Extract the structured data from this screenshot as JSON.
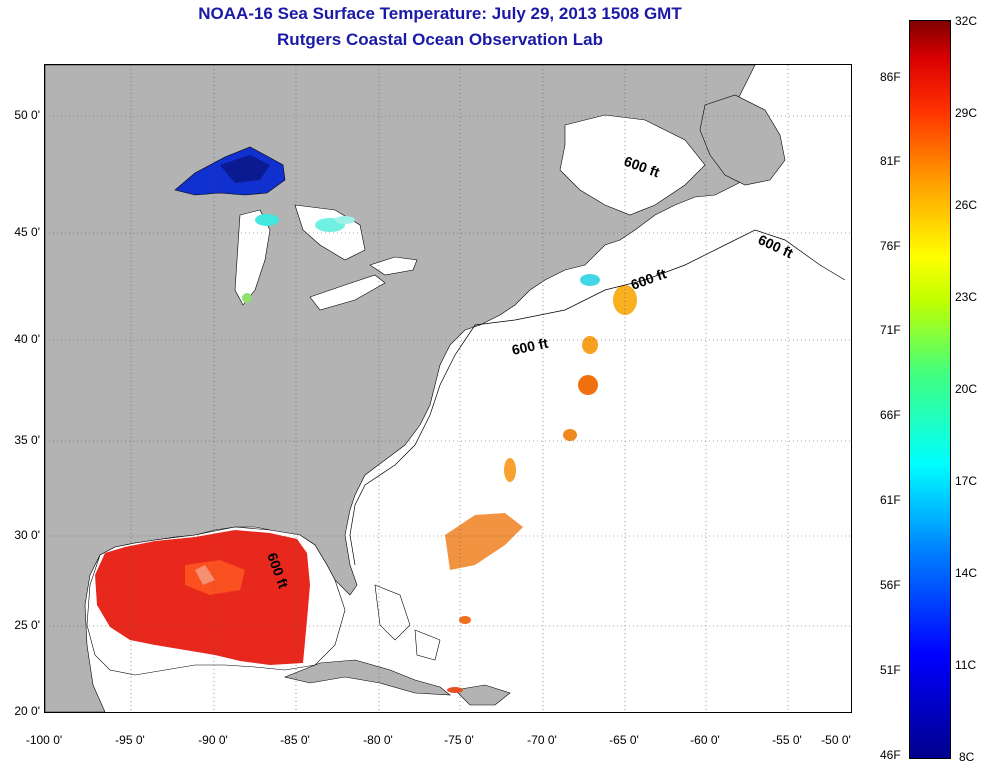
{
  "title_line1": "NOAA-16 Sea Surface Temperature:  July 29, 2013 1508 GMT",
  "title_line2": "Rutgers Coastal Ocean Observation Lab",
  "y_axis_labels": [
    "50 0'",
    "45 0'",
    "40 0'",
    "35 0'",
    "30 0'",
    "25 0'",
    "20 0'"
  ],
  "x_axis_labels": [
    "-100 0'",
    "-95 0'",
    "-90 0'",
    "-85 0'",
    "-80 0'",
    "-75 0'",
    "-70 0'",
    "-65 0'",
    "-60 0'",
    "-55 0'",
    "-50 0'"
  ],
  "colorbar_celsius": [
    "32C",
    "29C",
    "26C",
    "23C",
    "20C",
    "17C",
    "14C",
    "11C",
    "8C"
  ],
  "colorbar_fahrenheit": [
    "86F",
    "81F",
    "76F",
    "71F",
    "66F",
    "61F",
    "56F",
    "51F",
    "46F"
  ],
  "contour_label": "600 ft",
  "colors": {
    "land": "#b3b3b3",
    "title": "#1a1aa6",
    "warm_sst": "#e8281c",
    "cold_sst": "#1030d0",
    "mid_sst": "#ff9a20"
  }
}
